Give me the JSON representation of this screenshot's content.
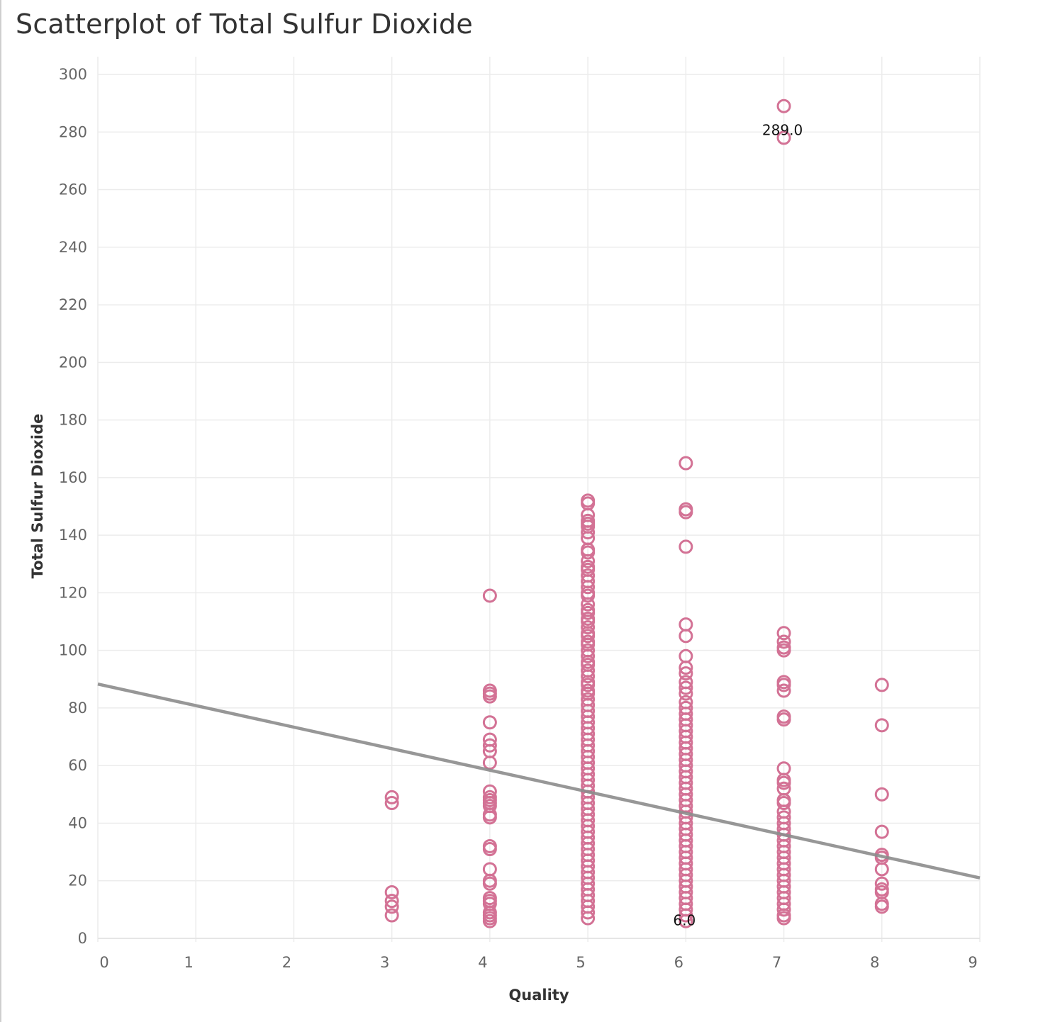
{
  "title": "Scatterplot of Total Sulfur Dioxide",
  "chart_data": {
    "type": "scatter",
    "title": "Scatterplot of Total Sulfur Dioxide",
    "xlabel": "Quality",
    "ylabel": "Total Sulfur Dioxide",
    "xlim": [
      0,
      9
    ],
    "ylim": [
      0,
      300
    ],
    "x_ticks": [
      "0",
      "1",
      "2",
      "3",
      "4",
      "5",
      "6",
      "7",
      "8",
      "9"
    ],
    "y_ticks": [
      "0",
      "20",
      "40",
      "60",
      "80",
      "100",
      "120",
      "140",
      "160",
      "180",
      "200",
      "220",
      "240",
      "260",
      "280",
      "300"
    ],
    "grid": true,
    "marker": "hollow-circle",
    "point_color": "#d37295",
    "trend_color": "#8c8c8c",
    "trend_line": {
      "x": [
        0,
        9
      ],
      "y": [
        88.3,
        21.0
      ]
    },
    "annotations": [
      {
        "x": 7,
        "y": 289,
        "text": "289.0"
      },
      {
        "x": 6,
        "y": 6,
        "text": "6.0"
      }
    ],
    "points": [
      {
        "x": 3,
        "y": 49
      },
      {
        "x": 3,
        "y": 47
      },
      {
        "x": 3,
        "y": 16
      },
      {
        "x": 3,
        "y": 13
      },
      {
        "x": 3,
        "y": 11
      },
      {
        "x": 3,
        "y": 8
      },
      {
        "x": 4,
        "y": 119
      },
      {
        "x": 4,
        "y": 86
      },
      {
        "x": 4,
        "y": 85
      },
      {
        "x": 4,
        "y": 84
      },
      {
        "x": 4,
        "y": 75
      },
      {
        "x": 4,
        "y": 69
      },
      {
        "x": 4,
        "y": 67
      },
      {
        "x": 4,
        "y": 65
      },
      {
        "x": 4,
        "y": 61
      },
      {
        "x": 4,
        "y": 51
      },
      {
        "x": 4,
        "y": 49
      },
      {
        "x": 4,
        "y": 48
      },
      {
        "x": 4,
        "y": 47
      },
      {
        "x": 4,
        "y": 46
      },
      {
        "x": 4,
        "y": 43
      },
      {
        "x": 4,
        "y": 42
      },
      {
        "x": 4,
        "y": 32
      },
      {
        "x": 4,
        "y": 31
      },
      {
        "x": 4,
        "y": 24
      },
      {
        "x": 4,
        "y": 20
      },
      {
        "x": 4,
        "y": 19
      },
      {
        "x": 4,
        "y": 14
      },
      {
        "x": 4,
        "y": 13
      },
      {
        "x": 4,
        "y": 12
      },
      {
        "x": 4,
        "y": 9
      },
      {
        "x": 4,
        "y": 8
      },
      {
        "x": 4,
        "y": 7
      },
      {
        "x": 4,
        "y": 6
      },
      {
        "x": 5,
        "y": 152
      },
      {
        "x": 5,
        "y": 151
      },
      {
        "x": 5,
        "y": 147
      },
      {
        "x": 5,
        "y": 145
      },
      {
        "x": 5,
        "y": 144
      },
      {
        "x": 5,
        "y": 143
      },
      {
        "x": 5,
        "y": 141
      },
      {
        "x": 5,
        "y": 139
      },
      {
        "x": 5,
        "y": 135
      },
      {
        "x": 5,
        "y": 134
      },
      {
        "x": 5,
        "y": 131
      },
      {
        "x": 5,
        "y": 129
      },
      {
        "x": 5,
        "y": 128
      },
      {
        "x": 5,
        "y": 126
      },
      {
        "x": 5,
        "y": 124
      },
      {
        "x": 5,
        "y": 122
      },
      {
        "x": 5,
        "y": 120
      },
      {
        "x": 5,
        "y": 119
      },
      {
        "x": 5,
        "y": 116
      },
      {
        "x": 5,
        "y": 114
      },
      {
        "x": 5,
        "y": 113
      },
      {
        "x": 5,
        "y": 111
      },
      {
        "x": 5,
        "y": 110
      },
      {
        "x": 5,
        "y": 108
      },
      {
        "x": 5,
        "y": 106
      },
      {
        "x": 5,
        "y": 105
      },
      {
        "x": 5,
        "y": 103
      },
      {
        "x": 5,
        "y": 102
      },
      {
        "x": 5,
        "y": 100
      },
      {
        "x": 5,
        "y": 98
      },
      {
        "x": 5,
        "y": 96
      },
      {
        "x": 5,
        "y": 95
      },
      {
        "x": 5,
        "y": 93
      },
      {
        "x": 5,
        "y": 91
      },
      {
        "x": 5,
        "y": 89
      },
      {
        "x": 5,
        "y": 88
      },
      {
        "x": 5,
        "y": 86
      },
      {
        "x": 5,
        "y": 85
      },
      {
        "x": 5,
        "y": 83
      },
      {
        "x": 5,
        "y": 81
      },
      {
        "x": 5,
        "y": 79
      },
      {
        "x": 5,
        "y": 77
      },
      {
        "x": 5,
        "y": 75
      },
      {
        "x": 5,
        "y": 73
      },
      {
        "x": 5,
        "y": 71
      },
      {
        "x": 5,
        "y": 69
      },
      {
        "x": 5,
        "y": 67
      },
      {
        "x": 5,
        "y": 65
      },
      {
        "x": 5,
        "y": 63
      },
      {
        "x": 5,
        "y": 61
      },
      {
        "x": 5,
        "y": 59
      },
      {
        "x": 5,
        "y": 57
      },
      {
        "x": 5,
        "y": 55
      },
      {
        "x": 5,
        "y": 53
      },
      {
        "x": 5,
        "y": 51
      },
      {
        "x": 5,
        "y": 49
      },
      {
        "x": 5,
        "y": 47
      },
      {
        "x": 5,
        "y": 45
      },
      {
        "x": 5,
        "y": 43
      },
      {
        "x": 5,
        "y": 41
      },
      {
        "x": 5,
        "y": 39
      },
      {
        "x": 5,
        "y": 37
      },
      {
        "x": 5,
        "y": 35
      },
      {
        "x": 5,
        "y": 33
      },
      {
        "x": 5,
        "y": 31
      },
      {
        "x": 5,
        "y": 29
      },
      {
        "x": 5,
        "y": 27
      },
      {
        "x": 5,
        "y": 25
      },
      {
        "x": 5,
        "y": 23
      },
      {
        "x": 5,
        "y": 21
      },
      {
        "x": 5,
        "y": 19
      },
      {
        "x": 5,
        "y": 17
      },
      {
        "x": 5,
        "y": 15
      },
      {
        "x": 5,
        "y": 13
      },
      {
        "x": 5,
        "y": 11
      },
      {
        "x": 5,
        "y": 9
      },
      {
        "x": 5,
        "y": 7
      },
      {
        "x": 6,
        "y": 165
      },
      {
        "x": 6,
        "y": 149
      },
      {
        "x": 6,
        "y": 148
      },
      {
        "x": 6,
        "y": 136
      },
      {
        "x": 6,
        "y": 109
      },
      {
        "x": 6,
        "y": 105
      },
      {
        "x": 6,
        "y": 98
      },
      {
        "x": 6,
        "y": 94
      },
      {
        "x": 6,
        "y": 92
      },
      {
        "x": 6,
        "y": 89
      },
      {
        "x": 6,
        "y": 87
      },
      {
        "x": 6,
        "y": 85
      },
      {
        "x": 6,
        "y": 82
      },
      {
        "x": 6,
        "y": 80
      },
      {
        "x": 6,
        "y": 78
      },
      {
        "x": 6,
        "y": 76
      },
      {
        "x": 6,
        "y": 74
      },
      {
        "x": 6,
        "y": 72
      },
      {
        "x": 6,
        "y": 70
      },
      {
        "x": 6,
        "y": 68
      },
      {
        "x": 6,
        "y": 66
      },
      {
        "x": 6,
        "y": 64
      },
      {
        "x": 6,
        "y": 62
      },
      {
        "x": 6,
        "y": 60
      },
      {
        "x": 6,
        "y": 58
      },
      {
        "x": 6,
        "y": 56
      },
      {
        "x": 6,
        "y": 54
      },
      {
        "x": 6,
        "y": 52
      },
      {
        "x": 6,
        "y": 50
      },
      {
        "x": 6,
        "y": 48
      },
      {
        "x": 6,
        "y": 46
      },
      {
        "x": 6,
        "y": 44
      },
      {
        "x": 6,
        "y": 42
      },
      {
        "x": 6,
        "y": 40
      },
      {
        "x": 6,
        "y": 38
      },
      {
        "x": 6,
        "y": 36
      },
      {
        "x": 6,
        "y": 34
      },
      {
        "x": 6,
        "y": 32
      },
      {
        "x": 6,
        "y": 30
      },
      {
        "x": 6,
        "y": 28
      },
      {
        "x": 6,
        "y": 26
      },
      {
        "x": 6,
        "y": 24
      },
      {
        "x": 6,
        "y": 22
      },
      {
        "x": 6,
        "y": 20
      },
      {
        "x": 6,
        "y": 18
      },
      {
        "x": 6,
        "y": 16
      },
      {
        "x": 6,
        "y": 14
      },
      {
        "x": 6,
        "y": 12
      },
      {
        "x": 6,
        "y": 10
      },
      {
        "x": 6,
        "y": 8
      },
      {
        "x": 6,
        "y": 6
      },
      {
        "x": 7,
        "y": 289
      },
      {
        "x": 7,
        "y": 278
      },
      {
        "x": 7,
        "y": 106
      },
      {
        "x": 7,
        "y": 103
      },
      {
        "x": 7,
        "y": 101
      },
      {
        "x": 7,
        "y": 100
      },
      {
        "x": 7,
        "y": 89
      },
      {
        "x": 7,
        "y": 88
      },
      {
        "x": 7,
        "y": 86
      },
      {
        "x": 7,
        "y": 77
      },
      {
        "x": 7,
        "y": 76
      },
      {
        "x": 7,
        "y": 59
      },
      {
        "x": 7,
        "y": 55
      },
      {
        "x": 7,
        "y": 54
      },
      {
        "x": 7,
        "y": 52
      },
      {
        "x": 7,
        "y": 48
      },
      {
        "x": 7,
        "y": 47
      },
      {
        "x": 7,
        "y": 44
      },
      {
        "x": 7,
        "y": 42
      },
      {
        "x": 7,
        "y": 40
      },
      {
        "x": 7,
        "y": 38
      },
      {
        "x": 7,
        "y": 36
      },
      {
        "x": 7,
        "y": 34
      },
      {
        "x": 7,
        "y": 32
      },
      {
        "x": 7,
        "y": 30
      },
      {
        "x": 7,
        "y": 28
      },
      {
        "x": 7,
        "y": 26
      },
      {
        "x": 7,
        "y": 24
      },
      {
        "x": 7,
        "y": 22
      },
      {
        "x": 7,
        "y": 20
      },
      {
        "x": 7,
        "y": 18
      },
      {
        "x": 7,
        "y": 16
      },
      {
        "x": 7,
        "y": 14
      },
      {
        "x": 7,
        "y": 12
      },
      {
        "x": 7,
        "y": 10
      },
      {
        "x": 7,
        "y": 8
      },
      {
        "x": 7,
        "y": 7
      },
      {
        "x": 8,
        "y": 88
      },
      {
        "x": 8,
        "y": 74
      },
      {
        "x": 8,
        "y": 50
      },
      {
        "x": 8,
        "y": 37
      },
      {
        "x": 8,
        "y": 29
      },
      {
        "x": 8,
        "y": 28
      },
      {
        "x": 8,
        "y": 24
      },
      {
        "x": 8,
        "y": 19
      },
      {
        "x": 8,
        "y": 17
      },
      {
        "x": 8,
        "y": 16
      },
      {
        "x": 8,
        "y": 12
      },
      {
        "x": 8,
        "y": 11
      }
    ]
  }
}
